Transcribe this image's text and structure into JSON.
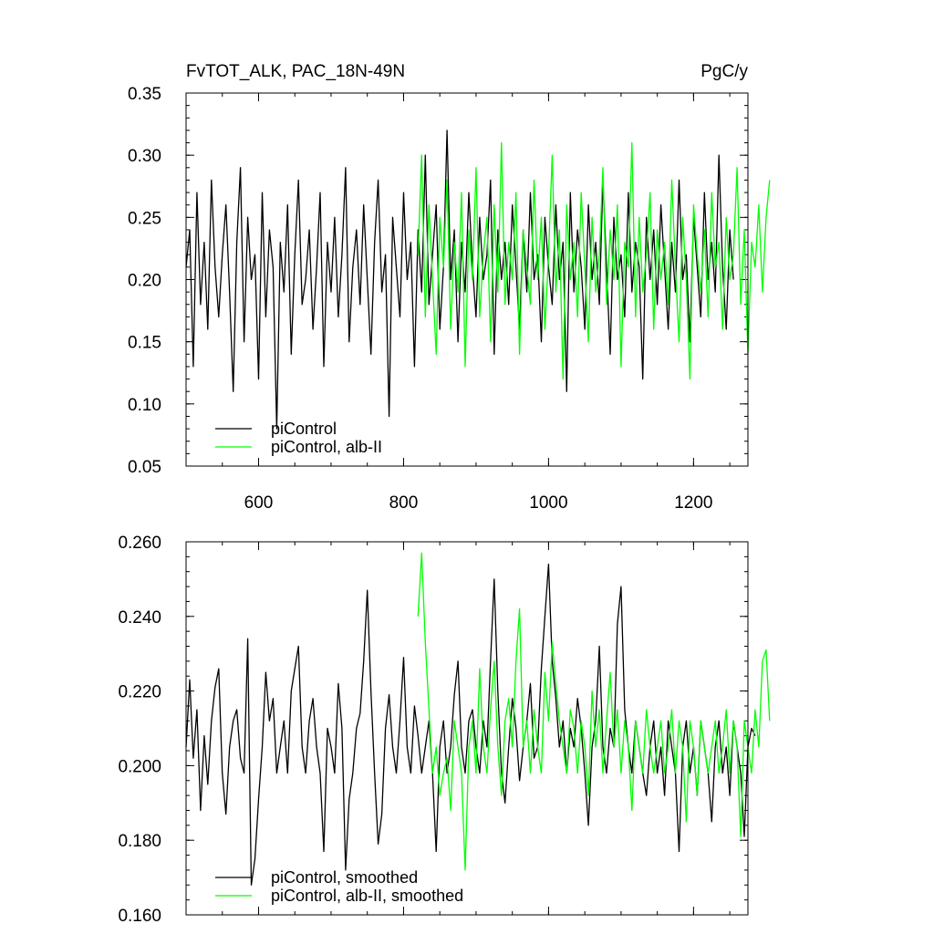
{
  "chart_data": [
    {
      "type": "line",
      "title": "FvTOT_ALK, PAC_18N-49N",
      "units": "PgC/y",
      "xlim": [
        500,
        1275
      ],
      "ylim": [
        0.05,
        0.35
      ],
      "x_ticks": [
        600,
        800,
        1000,
        1200
      ],
      "x_tick_labels": [
        "600",
        "800",
        "1000",
        "1200"
      ],
      "y_ticks": [
        0.05,
        0.1,
        0.15,
        0.2,
        0.25,
        0.3,
        0.35
      ],
      "y_tick_labels": [
        "0.05",
        "0.10",
        "0.15",
        "0.20",
        "0.25",
        "0.30",
        "0.35"
      ],
      "series": [
        {
          "name": "piControl",
          "color": "#000000",
          "x_start": 500,
          "x_step": 5,
          "values": [
            0.21,
            0.24,
            0.13,
            0.27,
            0.18,
            0.23,
            0.16,
            0.28,
            0.21,
            0.17,
            0.22,
            0.26,
            0.19,
            0.11,
            0.23,
            0.29,
            0.15,
            0.25,
            0.2,
            0.22,
            0.12,
            0.27,
            0.17,
            0.24,
            0.21,
            0.08,
            0.23,
            0.19,
            0.26,
            0.14,
            0.22,
            0.28,
            0.18,
            0.2,
            0.24,
            0.16,
            0.21,
            0.27,
            0.13,
            0.23,
            0.19,
            0.25,
            0.17,
            0.22,
            0.29,
            0.15,
            0.21,
            0.24,
            0.18,
            0.26,
            0.2,
            0.14,
            0.23,
            0.28,
            0.19,
            0.22,
            0.09,
            0.25,
            0.21,
            0.17,
            0.27,
            0.2,
            0.23,
            0.13,
            0.24,
            0.19,
            0.3,
            0.18,
            0.22,
            0.26,
            0.16,
            0.21,
            0.32,
            0.2,
            0.24,
            0.15,
            0.23,
            0.19,
            0.27,
            0.21,
            0.17,
            0.25,
            0.2,
            0.22,
            0.28,
            0.14,
            0.24,
            0.2,
            0.23,
            0.18,
            0.26,
            0.21,
            0.16,
            0.24,
            0.19,
            0.27,
            0.2,
            0.22,
            0.15,
            0.25,
            0.21,
            0.18,
            0.26,
            0.2,
            0.23,
            0.11,
            0.27,
            0.19,
            0.24,
            0.21,
            0.16,
            0.26,
            0.2,
            0.23,
            0.18,
            0.28,
            0.21,
            0.14,
            0.25,
            0.2,
            0.22,
            0.17,
            0.27,
            0.19,
            0.23,
            0.21,
            0.12,
            0.25,
            0.2,
            0.24,
            0.18,
            0.26,
            0.21,
            0.16,
            0.23,
            0.19,
            0.28,
            0.2,
            0.22,
            0.15,
            0.25,
            0.21,
            0.17,
            0.27,
            0.2,
            0.23,
            0.19,
            0.3,
            0.21,
            0.16,
            0.24,
            0.2
          ]
        },
        {
          "name": "piControl, alb-II",
          "color": "#00ff00",
          "x_start": 820,
          "x_step": 5,
          "values": [
            0.22,
            0.3,
            0.17,
            0.26,
            0.2,
            0.14,
            0.25,
            0.21,
            0.28,
            0.16,
            0.23,
            0.19,
            0.27,
            0.13,
            0.24,
            0.2,
            0.29,
            0.17,
            0.22,
            0.25,
            0.15,
            0.26,
            0.19,
            0.31,
            0.18,
            0.23,
            0.2,
            0.27,
            0.14,
            0.24,
            0.21,
            0.18,
            0.28,
            0.2,
            0.25,
            0.16,
            0.22,
            0.3,
            0.19,
            0.24,
            0.12,
            0.26,
            0.2,
            0.23,
            0.17,
            0.27,
            0.21,
            0.15,
            0.25,
            0.19,
            0.22,
            0.29,
            0.18,
            0.24,
            0.2,
            0.26,
            0.13,
            0.23,
            0.21,
            0.31,
            0.17,
            0.25,
            0.19,
            0.22,
            0.27,
            0.16,
            0.24,
            0.2,
            0.23,
            0.18,
            0.28,
            0.21,
            0.15,
            0.25,
            0.2,
            0.12,
            0.26,
            0.22,
            0.19,
            0.24,
            0.17,
            0.27,
            0.21,
            0.23,
            0.16,
            0.25,
            0.2,
            0.22,
            0.29,
            0.18,
            0.24,
            0.14,
            0.23,
            0.21,
            0.26,
            0.19,
            0.25,
            0.28
          ]
        }
      ]
    },
    {
      "type": "line",
      "xlim": [
        500,
        1275
      ],
      "ylim": [
        0.16,
        0.26
      ],
      "x_ticks": [
        600,
        800,
        1000,
        1200
      ],
      "y_ticks": [
        0.16,
        0.18,
        0.2,
        0.22,
        0.24,
        0.26
      ],
      "y_tick_labels": [
        "0.160",
        "0.180",
        "0.200",
        "0.220",
        "0.240",
        "0.260"
      ],
      "series": [
        {
          "name": "piControl, smoothed",
          "color": "#000000",
          "x_start": 500,
          "x_step": 5,
          "values": [
            0.205,
            0.223,
            0.202,
            0.215,
            0.188,
            0.208,
            0.195,
            0.212,
            0.221,
            0.226,
            0.198,
            0.187,
            0.205,
            0.212,
            0.215,
            0.202,
            0.198,
            0.234,
            0.168,
            0.175,
            0.191,
            0.205,
            0.225,
            0.212,
            0.218,
            0.198,
            0.205,
            0.212,
            0.198,
            0.22,
            0.226,
            0.232,
            0.205,
            0.198,
            0.212,
            0.218,
            0.205,
            0.198,
            0.177,
            0.21,
            0.205,
            0.198,
            0.222,
            0.21,
            0.172,
            0.191,
            0.198,
            0.21,
            0.214,
            0.228,
            0.247,
            0.22,
            0.198,
            0.179,
            0.187,
            0.21,
            0.219,
            0.205,
            0.198,
            0.212,
            0.229,
            0.205,
            0.198,
            0.216,
            0.208,
            0.198,
            0.205,
            0.212,
            0.198,
            0.177,
            0.205,
            0.212,
            0.198,
            0.205,
            0.219,
            0.228,
            0.205,
            0.198,
            0.212,
            0.215,
            0.205,
            0.198,
            0.212,
            0.205,
            0.228,
            0.25,
            0.22,
            0.198,
            0.19,
            0.205,
            0.218,
            0.21,
            0.196,
            0.205,
            0.212,
            0.222,
            0.202,
            0.205,
            0.226,
            0.24,
            0.254,
            0.228,
            0.218,
            0.205,
            0.212,
            0.198,
            0.21,
            0.205,
            0.218,
            0.21,
            0.198,
            0.184,
            0.205,
            0.212,
            0.232,
            0.205,
            0.198,
            0.21,
            0.205,
            0.238,
            0.248,
            0.215,
            0.205,
            0.198,
            0.212,
            0.205,
            0.198,
            0.192,
            0.205,
            0.212,
            0.198,
            0.205,
            0.192,
            0.212,
            0.205,
            0.198,
            0.177,
            0.205,
            0.212,
            0.198,
            0.205,
            0.192,
            0.212,
            0.205,
            0.198,
            0.185,
            0.205,
            0.212,
            0.198,
            0.205,
            0.192,
            0.212,
            0.205,
            0.198,
            0.181,
            0.205,
            0.21,
            0.208
          ]
        },
        {
          "name": "piControl, alb-II, smoothed",
          "color": "#00ff00",
          "x_start": 820,
          "x_step": 5,
          "values": [
            0.24,
            0.257,
            0.233,
            0.215,
            0.198,
            0.205,
            0.192,
            0.198,
            0.202,
            0.188,
            0.212,
            0.205,
            0.198,
            0.172,
            0.205,
            0.212,
            0.198,
            0.226,
            0.205,
            0.198,
            0.215,
            0.228,
            0.205,
            0.192,
            0.212,
            0.218,
            0.205,
            0.228,
            0.242,
            0.205,
            0.212,
            0.198,
            0.215,
            0.205,
            0.198,
            0.225,
            0.212,
            0.233,
            0.222,
            0.212,
            0.205,
            0.198,
            0.215,
            0.21,
            0.198,
            0.212,
            0.205,
            0.192,
            0.22,
            0.205,
            0.215,
            0.198,
            0.212,
            0.225,
            0.205,
            0.215,
            0.198,
            0.212,
            0.205,
            0.188,
            0.212,
            0.205,
            0.198,
            0.215,
            0.205,
            0.198,
            0.205,
            0.212,
            0.198,
            0.205,
            0.215,
            0.198,
            0.212,
            0.205,
            0.185,
            0.212,
            0.205,
            0.192,
            0.212,
            0.205,
            0.198,
            0.205,
            0.212,
            0.198,
            0.205,
            0.215,
            0.198,
            0.212,
            0.205,
            0.181,
            0.212,
            0.205,
            0.198,
            0.215,
            0.205,
            0.228,
            0.231,
            0.212
          ]
        }
      ]
    }
  ]
}
